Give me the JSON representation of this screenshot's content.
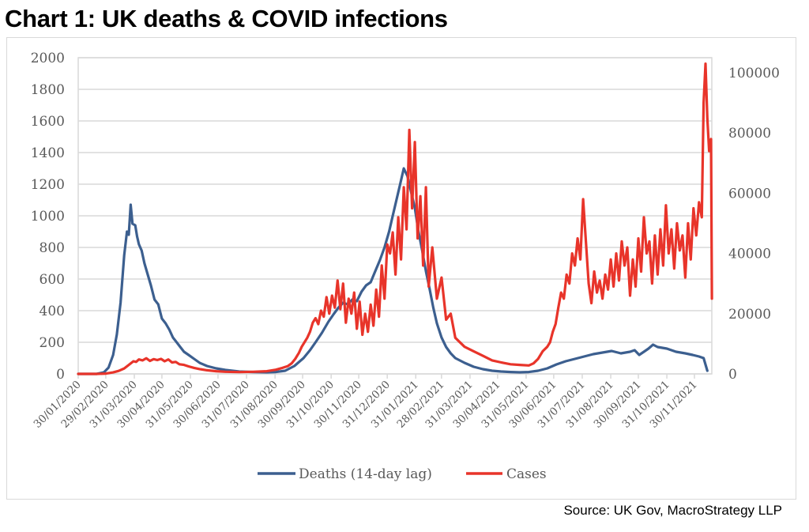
{
  "title": "Chart 1: UK deaths & COVID infections",
  "source": "Source: UK Gov, MacroStrategy LLP",
  "colors": {
    "deaths": "#3c5f8f",
    "cases": "#e8342a",
    "grid": "#d9d9d9",
    "text": "#595959"
  },
  "chart_data": {
    "type": "line",
    "title": "Chart 1: UK deaths & COVID infections",
    "xlabel": "",
    "ylabel": "",
    "y_left": {
      "min": 0,
      "max": 2000,
      "ticks": [
        0,
        200,
        400,
        600,
        800,
        1000,
        1200,
        1400,
        1600,
        1800,
        2000
      ]
    },
    "y_right": {
      "min": 0,
      "max": 105000,
      "ticks": [
        0,
        20000,
        40000,
        60000,
        80000,
        100000
      ]
    },
    "x_range": [
      "30/01/2020",
      "20/12/2021"
    ],
    "x_tick_labels": [
      "30/01/2020",
      "29/02/2020",
      "31/03/2020",
      "30/04/2020",
      "31/05/2020",
      "30/06/2020",
      "31/07/2020",
      "31/08/2020",
      "30/09/2020",
      "31/10/2020",
      "30/11/2020",
      "31/12/2020",
      "31/01/2021",
      "28/02/2021",
      "31/03/2021",
      "30/04/2021",
      "31/05/2021",
      "30/06/2021",
      "31/07/2021",
      "31/08/2021",
      "30/09/2021",
      "31/10/2021",
      "30/11/2021"
    ],
    "x_tick_days": [
      0,
      30,
      61,
      91,
      122,
      152,
      183,
      214,
      244,
      275,
      305,
      336,
      367,
      395,
      426,
      456,
      487,
      517,
      548,
      579,
      609,
      640,
      670
    ],
    "grid": true,
    "legend": {
      "position": "bottom",
      "entries": [
        "Deaths (14-day lag)",
        "Cases"
      ]
    },
    "series": [
      {
        "name": "Deaths (14-day lag)",
        "axis": "left",
        "days": [
          0,
          20,
          28,
          33,
          38,
          42,
          46,
          50,
          53,
          55,
          57,
          59,
          62,
          64,
          66,
          69,
          72,
          75,
          79,
          83,
          87,
          91,
          95,
          99,
          103,
          107,
          111,
          115,
          120,
          126,
          132,
          140,
          150,
          160,
          175,
          190,
          205,
          215,
          225,
          235,
          245,
          252,
          258,
          265,
          272,
          278,
          283,
          288,
          293,
          298,
          303,
          308,
          313,
          318,
          323,
          328,
          333,
          338,
          342,
          346,
          350,
          354,
          358,
          362,
          366,
          370,
          374,
          378,
          382,
          386,
          390,
          395,
          400,
          405,
          410,
          420,
          430,
          440,
          450,
          460,
          470,
          480,
          490,
          500,
          510,
          520,
          530,
          540,
          550,
          560,
          570,
          580,
          590,
          600,
          605,
          610,
          615,
          620,
          625,
          630,
          640,
          650,
          660,
          668,
          675,
          680,
          684,
          686
        ],
        "values": [
          0,
          0,
          10,
          40,
          120,
          250,
          450,
          750,
          900,
          880,
          1070,
          950,
          940,
          870,
          820,
          780,
          700,
          640,
          560,
          470,
          440,
          350,
          320,
          280,
          230,
          200,
          170,
          140,
          120,
          95,
          70,
          50,
          35,
          25,
          15,
          12,
          10,
          12,
          20,
          50,
          100,
          150,
          200,
          260,
          330,
          380,
          420,
          450,
          440,
          470,
          460,
          520,
          560,
          580,
          650,
          720,
          800,
          900,
          1000,
          1100,
          1200,
          1300,
          1250,
          1150,
          1050,
          900,
          780,
          650,
          540,
          420,
          320,
          230,
          170,
          130,
          100,
          70,
          45,
          30,
          20,
          15,
          12,
          10,
          12,
          20,
          35,
          60,
          80,
          95,
          110,
          125,
          135,
          145,
          130,
          140,
          150,
          120,
          140,
          160,
          185,
          170,
          160,
          140,
          130,
          120,
          110,
          100,
          20
        ]
      },
      {
        "name": "Cases",
        "axis": "right",
        "days": [
          0,
          20,
          30,
          38,
          44,
          50,
          55,
          60,
          63,
          66,
          70,
          74,
          78,
          82,
          86,
          90,
          94,
          98,
          102,
          106,
          110,
          115,
          120,
          126,
          132,
          140,
          150,
          160,
          175,
          190,
          205,
          215,
          222,
          228,
          232,
          236,
          240,
          243,
          246,
          249,
          252,
          255,
          258,
          261,
          264,
          267,
          270,
          273,
          276,
          279,
          282,
          285,
          288,
          291,
          294,
          297,
          300,
          303,
          306,
          309,
          312,
          315,
          318,
          321,
          324,
          327,
          330,
          333,
          336,
          339,
          342,
          345,
          348,
          351,
          354,
          357,
          360,
          363,
          366,
          369,
          372,
          375,
          378,
          381,
          385,
          390,
          395,
          400,
          405,
          410,
          420,
          430,
          440,
          450,
          460,
          470,
          480,
          490,
          495,
          500,
          505,
          510,
          513,
          516,
          519,
          522,
          525,
          528,
          531,
          534,
          537,
          540,
          543,
          546,
          549,
          552,
          555,
          558,
          561,
          564,
          567,
          570,
          573,
          576,
          579,
          582,
          585,
          588,
          591,
          594,
          597,
          600,
          603,
          606,
          609,
          612,
          615,
          618,
          621,
          624,
          627,
          630,
          633,
          636,
          639,
          642,
          645,
          648,
          651,
          654,
          657,
          660,
          663,
          666,
          669,
          672,
          675,
          678,
          680,
          682,
          684,
          686,
          688,
          689
        ],
        "values": [
          0,
          0,
          100,
          500,
          1000,
          1800,
          3000,
          4200,
          4000,
          4800,
          4500,
          5200,
          4300,
          4900,
          4600,
          5000,
          4200,
          4800,
          3800,
          4000,
          3200,
          3000,
          2500,
          2000,
          1600,
          1200,
          900,
          700,
          600,
          700,
          900,
          1400,
          2000,
          2600,
          3500,
          5000,
          7000,
          9000,
          10500,
          12000,
          14000,
          17000,
          18500,
          16500,
          21000,
          19000,
          25500,
          20000,
          26000,
          22000,
          31000,
          21500,
          30000,
          17000,
          25000,
          20000,
          27000,
          15000,
          24000,
          13000,
          20000,
          14000,
          23000,
          16000,
          28000,
          19000,
          36000,
          25000,
          43000,
          40000,
          47000,
          33000,
          52000,
          38000,
          62000,
          48000,
          81000,
          55000,
          77000,
          45000,
          59000,
          36000,
          62000,
          29000,
          42000,
          25000,
          32000,
          18000,
          20000,
          12000,
          9000,
          7500,
          6000,
          4500,
          3800,
          3200,
          3000,
          2800,
          3500,
          5000,
          7500,
          9000,
          10500,
          14000,
          16500,
          22000,
          27000,
          25000,
          33000,
          30000,
          40000,
          36000,
          45000,
          38000,
          58000,
          44000,
          30000,
          23500,
          34000,
          27000,
          31000,
          25000,
          33000,
          28000,
          38000,
          29000,
          40000,
          31000,
          44000,
          36000,
          42000,
          26000,
          38000,
          29000,
          45000,
          34000,
          52000,
          40000,
          44000,
          30000,
          46000,
          33000,
          48000,
          36000,
          56000,
          40000,
          48000,
          35000,
          50000,
          41000,
          46000,
          32000,
          50000,
          38000,
          55000,
          46000,
          57000,
          52000,
          90000,
          103000,
          85000,
          74000,
          78000,
          25000
        ]
      }
    ]
  }
}
